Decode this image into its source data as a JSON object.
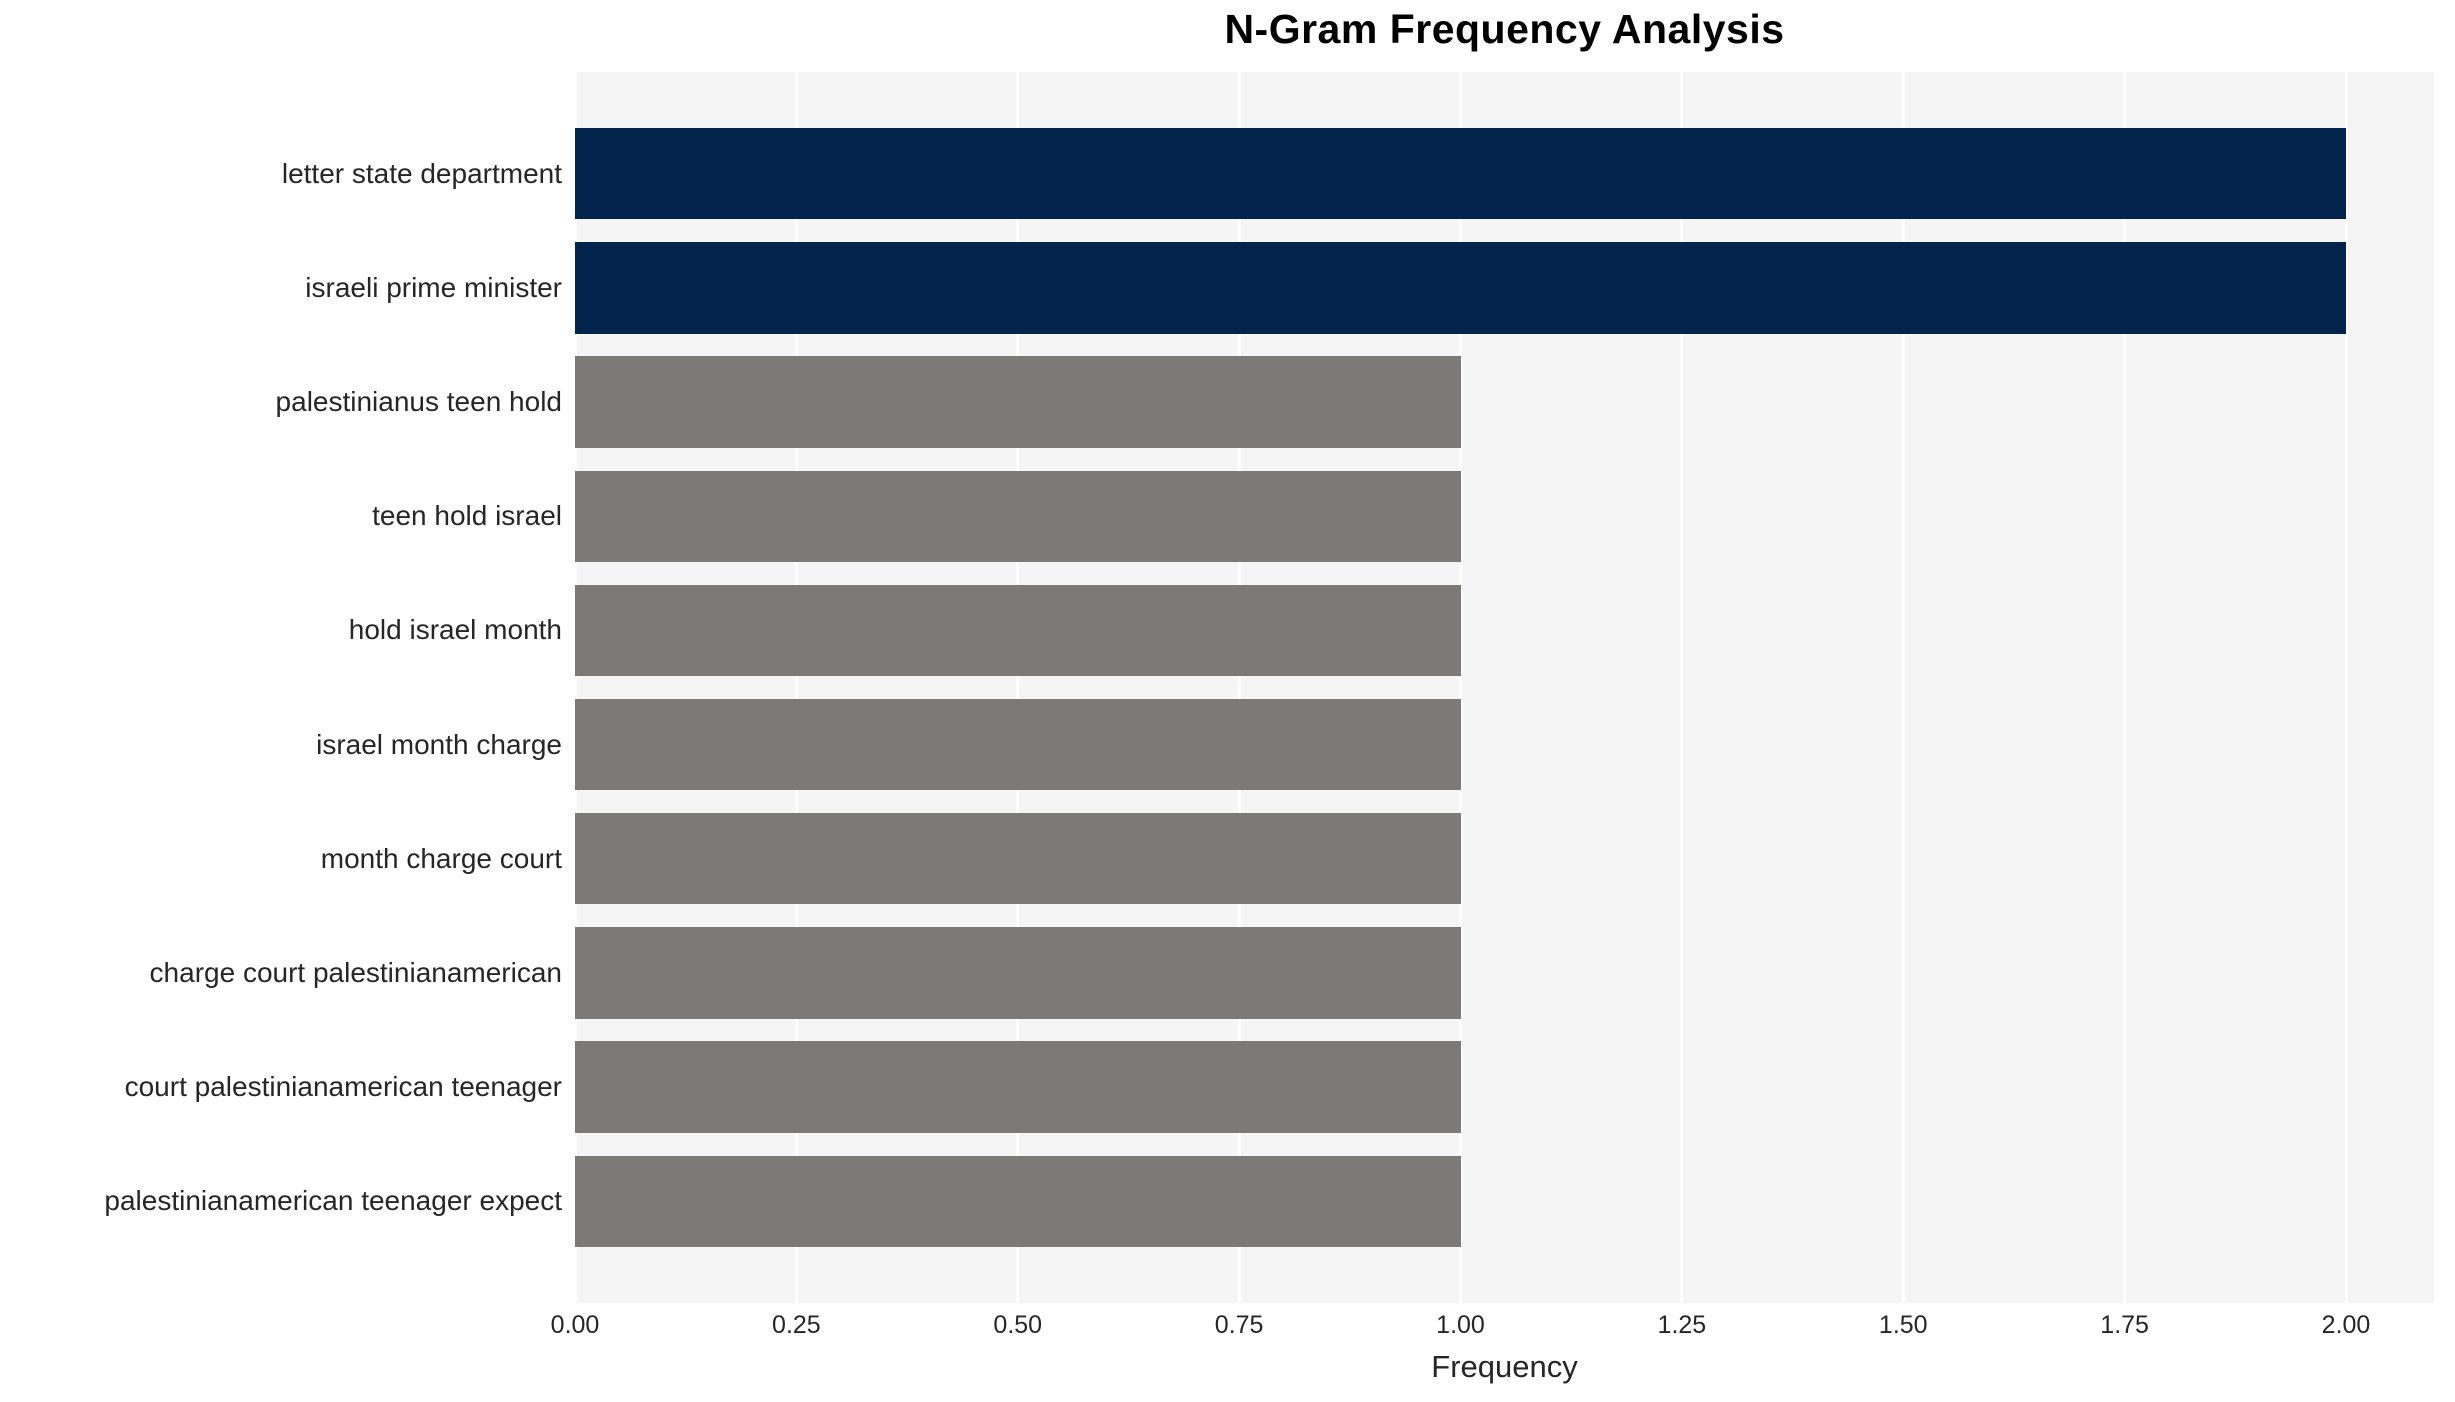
{
  "chart_data": {
    "type": "bar",
    "orientation": "horizontal",
    "title": "N-Gram Frequency Analysis",
    "xlabel": "Frequency",
    "ylabel": "",
    "categories": [
      "letter state department",
      "israeli prime minister",
      "palestinianus teen hold",
      "teen hold israel",
      "hold israel month",
      "israel month charge",
      "month charge court",
      "charge court palestinianamerican",
      "court palestinianamerican teenager",
      "palestinianamerican teenager expect"
    ],
    "values": [
      2,
      2,
      1,
      1,
      1,
      1,
      1,
      1,
      1,
      1
    ],
    "xlim": [
      0,
      2.1
    ],
    "xticks": [
      {
        "label": "0.00",
        "value": 0.0
      },
      {
        "label": "0.25",
        "value": 0.25
      },
      {
        "label": "0.50",
        "value": 0.5
      },
      {
        "label": "0.75",
        "value": 0.75
      },
      {
        "label": "1.00",
        "value": 1.0
      },
      {
        "label": "1.25",
        "value": 1.25
      },
      {
        "label": "1.50",
        "value": 1.5
      },
      {
        "label": "1.75",
        "value": 1.75
      },
      {
        "label": "2.00",
        "value": 2.0
      }
    ],
    "grid": "vertical-white-lines",
    "legend": "none",
    "colors": {
      "bar_highlight": "#02234C",
      "bar_default": "#7B7A77",
      "plot_background": "#F5F5F6",
      "gridline": "#FFFFFF",
      "axis_text": "#262626",
      "title_text": "#000000",
      "page_background": "#FFFFFF"
    },
    "bar_color_map": [
      "highlight",
      "highlight",
      "default",
      "default",
      "default",
      "default",
      "default",
      "default",
      "default",
      "default"
    ]
  }
}
